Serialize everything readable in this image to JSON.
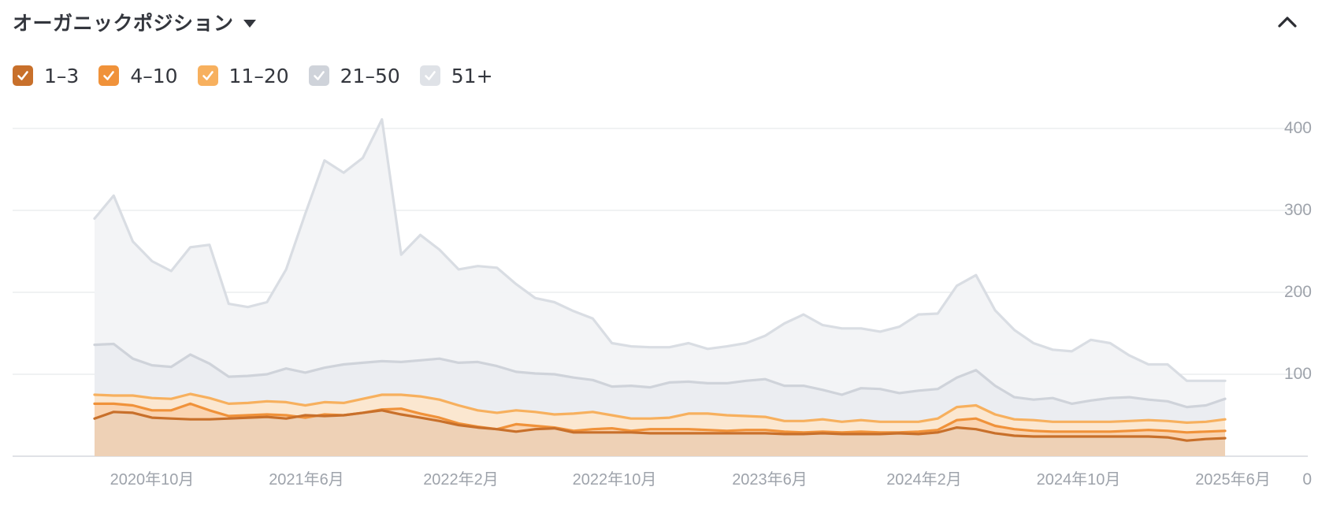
{
  "header": {
    "title": "オーガニックポジション"
  },
  "icons": {
    "dropdown": "caret-down-icon",
    "collapse": "chevron-up-icon",
    "check": "checkmark-icon"
  },
  "legend": [
    {
      "label": "1–3",
      "color": "#c8702b"
    },
    {
      "label": "4–10",
      "color": "#f0923a"
    },
    {
      "label": "11–20",
      "color": "#f7b05e"
    },
    {
      "label": "21–50",
      "color": "#cfd3da"
    },
    {
      "label": "51+",
      "color": "#dfe2e7"
    }
  ],
  "chart_data": {
    "type": "area",
    "stacked": false,
    "grid": true,
    "y_axis_position": "right",
    "ylim": [
      0,
      400
    ],
    "yticks": [
      0,
      100,
      200,
      300,
      400
    ],
    "xtick_labels": [
      "2020年10月",
      "2021年6月",
      "2022年2月",
      "2022年10月",
      "2023年6月",
      "2024年2月",
      "2024年10月",
      "2025年6月"
    ],
    "x_range": [
      "2020年7月",
      "2025年6月"
    ],
    "series": [
      {
        "name": "51+",
        "color": "#d9dde3",
        "fill": "#f2f3f5",
        "values": [
          290,
          318,
          262,
          238,
          226,
          255,
          258,
          186,
          182,
          188,
          228,
          296,
          361,
          346,
          364,
          411,
          246,
          270,
          252,
          228,
          232,
          230,
          210,
          193,
          188,
          177,
          168,
          138,
          134,
          133,
          133,
          138,
          131,
          134,
          138,
          147,
          162,
          173,
          160,
          156,
          156,
          152,
          158,
          173,
          174,
          208,
          221,
          178,
          154,
          138,
          130,
          128,
          142,
          138,
          123,
          112,
          112,
          92,
          92,
          92
        ]
      },
      {
        "name": "21–50",
        "color": "#cfd3da",
        "fill": "#eaecf0",
        "values": [
          136,
          137,
          119,
          111,
          109,
          124,
          113,
          97,
          98,
          100,
          107,
          102,
          108,
          112,
          114,
          116,
          115,
          117,
          119,
          114,
          115,
          110,
          103,
          101,
          100,
          96,
          93,
          85,
          86,
          84,
          90,
          91,
          89,
          89,
          92,
          94,
          86,
          86,
          81,
          75,
          83,
          82,
          77,
          80,
          82,
          96,
          105,
          86,
          72,
          69,
          71,
          64,
          68,
          71,
          72,
          69,
          67,
          60,
          62,
          70
        ]
      },
      {
        "name": "11–20",
        "color": "#f7b05e",
        "fill": "#fde5cc",
        "values": [
          75,
          74,
          74,
          71,
          70,
          76,
          71,
          64,
          65,
          67,
          66,
          62,
          66,
          65,
          70,
          75,
          75,
          73,
          69,
          62,
          56,
          53,
          56,
          54,
          51,
          52,
          54,
          50,
          46,
          46,
          47,
          52,
          52,
          50,
          49,
          48,
          43,
          43,
          45,
          42,
          44,
          42,
          42,
          42,
          46,
          60,
          62,
          51,
          45,
          44,
          42,
          42,
          42,
          42,
          43,
          44,
          43,
          41,
          42,
          45
        ]
      },
      {
        "name": "4–10",
        "color": "#f0923a",
        "fill": "#f9d2ad",
        "values": [
          64,
          64,
          62,
          56,
          56,
          64,
          56,
          49,
          50,
          51,
          50,
          47,
          51,
          50,
          53,
          57,
          58,
          52,
          47,
          40,
          36,
          33,
          39,
          37,
          35,
          31,
          33,
          34,
          31,
          33,
          33,
          33,
          32,
          31,
          32,
          32,
          30,
          29,
          30,
          29,
          30,
          29,
          29,
          30,
          32,
          44,
          46,
          37,
          33,
          31,
          30,
          30,
          30,
          30,
          31,
          32,
          31,
          29,
          30,
          31
        ]
      },
      {
        "name": "1–3",
        "color": "#c8702b",
        "fill": "#ecd0b7",
        "values": [
          46,
          54,
          53,
          47,
          46,
          45,
          45,
          46,
          47,
          48,
          46,
          50,
          49,
          50,
          53,
          56,
          51,
          47,
          43,
          38,
          35,
          33,
          30,
          33,
          34,
          29,
          29,
          29,
          29,
          28,
          28,
          28,
          28,
          28,
          28,
          28,
          27,
          27,
          28,
          27,
          27,
          27,
          28,
          27,
          29,
          35,
          33,
          28,
          25,
          24,
          24,
          24,
          24,
          24,
          24,
          24,
          23,
          19,
          21,
          22
        ]
      }
    ]
  }
}
